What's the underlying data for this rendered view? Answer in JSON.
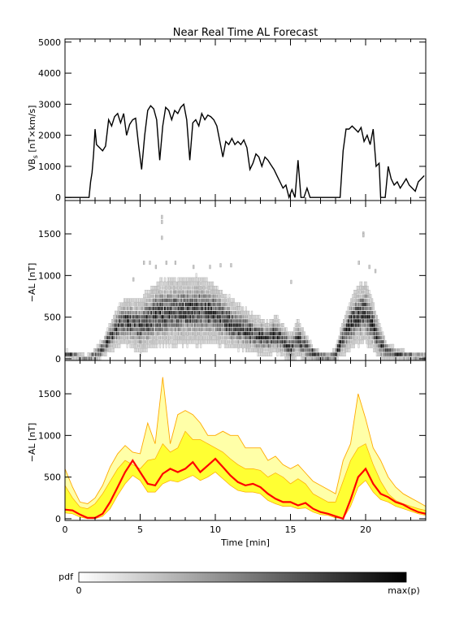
{
  "title": "Near Real Time AL Forecast",
  "colors": {
    "line_black": "#000000",
    "band_outer": "#ffa800",
    "band_fill": "#ffff33",
    "band_light": "#ffffa8",
    "median_line": "#ff0000"
  },
  "chart_data": [
    {
      "type": "line",
      "panel": "top",
      "title": "Near Real Time AL Forecast",
      "ylabel": "VB",
      "ylabel_sub": "s",
      "ylabel_rest": " [nT×km/s]",
      "xlim": [
        0,
        24
      ],
      "ylim": [
        -100,
        5100
      ],
      "yticks": [
        0,
        1000,
        2000,
        3000,
        4000,
        5000
      ],
      "series": [
        {
          "x": [
            0,
            1.2,
            1.4,
            1.6,
            1.7,
            1.8,
            1.9,
            2.0,
            2.1,
            2.3,
            2.5,
            2.7,
            2.9,
            3.1,
            3.3,
            3.5,
            3.7,
            3.9,
            4.1,
            4.3,
            4.5,
            4.7,
            4.9,
            5.1,
            5.3,
            5.5,
            5.7,
            5.9,
            6.1,
            6.3,
            6.5,
            6.7,
            6.9,
            7.1,
            7.3,
            7.5,
            7.7,
            7.9,
            8.1,
            8.3,
            8.5,
            8.7,
            8.9,
            9.1,
            9.3,
            9.5,
            9.7,
            9.9,
            10.1,
            10.3,
            10.5,
            10.7,
            10.9,
            11.1,
            11.3,
            11.5,
            11.7,
            11.9,
            12.1,
            12.3,
            12.5,
            12.7,
            12.9,
            13.1,
            13.3,
            13.5,
            13.7,
            13.9,
            14.1,
            14.3,
            14.5,
            14.7,
            14.9,
            15.1,
            15.3,
            15.5,
            15.7,
            15.9,
            16.1,
            16.3,
            16.5,
            16.7,
            17.0,
            17.5,
            18.0,
            18.3,
            18.5,
            18.7,
            18.9,
            19.1,
            19.3,
            19.5,
            19.7,
            19.9,
            20.1,
            20.3,
            20.5,
            20.7,
            20.9,
            21.0,
            21.1,
            21.3,
            21.5,
            21.7,
            21.9,
            22.1,
            22.3,
            22.5,
            22.7,
            22.9,
            23.1,
            23.3,
            23.5,
            23.7,
            23.9
          ],
          "values": [
            0,
            0,
            0,
            0,
            500,
            800,
            1400,
            2200,
            1700,
            1600,
            1500,
            1650,
            2500,
            2300,
            2600,
            2700,
            2400,
            2700,
            2000,
            2350,
            2500,
            2550,
            1650,
            900,
            2000,
            2800,
            2950,
            2850,
            2500,
            1200,
            2300,
            2900,
            2800,
            2500,
            2800,
            2700,
            2900,
            3000,
            2500,
            1200,
            2400,
            2500,
            2300,
            2700,
            2500,
            2650,
            2600,
            2500,
            2300,
            1800,
            1300,
            1800,
            1700,
            1900,
            1700,
            1800,
            1700,
            1850,
            1600,
            900,
            1100,
            1400,
            1300,
            1000,
            1300,
            1200,
            1050,
            900,
            700,
            500,
            300,
            400,
            0,
            250,
            0,
            1200,
            0,
            0,
            300,
            0,
            0,
            0,
            0,
            0,
            0,
            0,
            1500,
            2200,
            2200,
            2300,
            2200,
            2100,
            2250,
            1800,
            2000,
            1700,
            2200,
            1000,
            1100,
            0,
            0,
            0,
            1000,
            600,
            400,
            500,
            300,
            450,
            600,
            400,
            300,
            200,
            500,
            600,
            700
          ]
        }
      ]
    },
    {
      "type": "heatmap",
      "panel": "middle",
      "ylabel": "−AL [nT]",
      "xlim": [
        0,
        24
      ],
      "ylim": [
        -20,
        1900
      ],
      "yticks": [
        0,
        500,
        1000,
        1500
      ],
      "ridge_x": [
        0,
        0.5,
        1,
        1.5,
        2,
        2.5,
        3,
        3.5,
        4,
        4.5,
        5,
        5.5,
        6,
        6.5,
        7,
        7.5,
        8,
        8.5,
        9,
        9.5,
        10,
        10.5,
        11,
        11.5,
        12,
        12.5,
        13,
        13.5,
        14,
        14.5,
        15,
        15.5,
        16,
        16.5,
        17,
        17.5,
        18,
        18.5,
        19,
        19.5,
        20,
        20.5,
        21,
        21.5,
        22,
        22.5,
        23,
        23.5,
        24
      ],
      "ridge_y": [
        50,
        40,
        20,
        10,
        40,
        120,
        250,
        380,
        450,
        420,
        380,
        460,
        520,
        540,
        560,
        560,
        570,
        580,
        580,
        560,
        540,
        480,
        420,
        380,
        340,
        300,
        260,
        240,
        300,
        220,
        120,
        240,
        140,
        60,
        30,
        20,
        40,
        250,
        420,
        520,
        560,
        400,
        180,
        80,
        60,
        40,
        30,
        25,
        20
      ],
      "spread_y": [
        40,
        40,
        30,
        30,
        60,
        90,
        140,
        180,
        220,
        240,
        260,
        280,
        300,
        320,
        320,
        320,
        320,
        320,
        320,
        300,
        280,
        260,
        240,
        220,
        200,
        180,
        180,
        160,
        180,
        160,
        140,
        180,
        140,
        80,
        50,
        40,
        60,
        180,
        240,
        280,
        300,
        240,
        160,
        80,
        60,
        50,
        40,
        40,
        40
      ],
      "outliers": [
        [
          6.4,
          1700
        ],
        [
          6.4,
          1640
        ],
        [
          6.4,
          1450
        ],
        [
          19.8,
          1500
        ],
        [
          19.8,
          1480
        ],
        [
          5.2,
          1150
        ],
        [
          5.6,
          1150
        ],
        [
          6.0,
          1100
        ],
        [
          6.7,
          1150
        ],
        [
          7.3,
          1150
        ],
        [
          8.5,
          1100
        ],
        [
          9.6,
          1100
        ],
        [
          10.3,
          1120
        ],
        [
          11.0,
          1120
        ],
        [
          19.5,
          1150
        ],
        [
          20.2,
          1100
        ],
        [
          20.6,
          1050
        ],
        [
          4.5,
          950
        ],
        [
          15.0,
          920
        ]
      ]
    },
    {
      "type": "area",
      "panel": "bottom",
      "xlabel": "Time [min]",
      "ylabel": "−AL [nT]",
      "xlim": [
        0,
        24
      ],
      "ylim": [
        -20,
        1900
      ],
      "xticks": [
        0,
        5,
        10,
        15,
        20
      ],
      "yticks": [
        0,
        500,
        1000,
        1500
      ],
      "x": [
        0,
        0.5,
        1,
        1.5,
        2,
        2.5,
        3,
        3.5,
        4,
        4.5,
        5,
        5.5,
        6,
        6.5,
        7,
        7.5,
        8,
        8.5,
        9,
        9.5,
        10,
        10.5,
        11,
        11.5,
        12,
        12.5,
        13,
        13.5,
        14,
        14.5,
        15,
        15.5,
        16,
        16.5,
        17,
        17.5,
        18,
        18.5,
        19,
        19.5,
        20,
        20.5,
        21,
        21.5,
        22,
        22.5,
        23,
        23.5,
        24
      ],
      "series": [
        {
          "name": "outer_upper",
          "values": [
            600,
            380,
            200,
            180,
            250,
            400,
            620,
            780,
            880,
            800,
            780,
            1150,
            900,
            1700,
            900,
            1250,
            1300,
            1250,
            1150,
            1000,
            1000,
            1050,
            1000,
            1000,
            850,
            850,
            850,
            700,
            750,
            650,
            600,
            650,
            550,
            450,
            400,
            350,
            300,
            700,
            900,
            1500,
            1200,
            850,
            700,
            500,
            380,
            300,
            250,
            200,
            150
          ]
        },
        {
          "name": "band_upper",
          "values": [
            400,
            250,
            140,
            120,
            180,
            300,
            450,
            600,
            700,
            650,
            600,
            700,
            720,
            900,
            800,
            850,
            1050,
            950,
            950,
            900,
            850,
            800,
            720,
            650,
            600,
            600,
            580,
            500,
            550,
            500,
            420,
            480,
            420,
            300,
            250,
            200,
            200,
            450,
            700,
            850,
            900,
            650,
            450,
            300,
            220,
            180,
            150,
            120,
            100
          ]
        },
        {
          "name": "median",
          "values": [
            110,
            100,
            50,
            10,
            10,
            60,
            200,
            380,
            560,
            700,
            560,
            420,
            400,
            540,
            600,
            560,
            600,
            680,
            560,
            640,
            720,
            620,
            520,
            440,
            400,
            420,
            380,
            300,
            240,
            200,
            200,
            160,
            190,
            120,
            80,
            60,
            30,
            0,
            230,
            500,
            600,
            420,
            300,
            260,
            200,
            170,
            120,
            80,
            60
          ]
        },
        {
          "name": "band_lower",
          "values": [
            70,
            60,
            20,
            0,
            0,
            30,
            120,
            280,
            420,
            520,
            460,
            320,
            320,
            420,
            460,
            440,
            480,
            520,
            460,
            500,
            560,
            480,
            400,
            340,
            320,
            320,
            300,
            220,
            180,
            150,
            150,
            120,
            130,
            80,
            50,
            40,
            10,
            0,
            150,
            380,
            460,
            320,
            230,
            200,
            150,
            120,
            90,
            60,
            40
          ]
        }
      ]
    }
  ],
  "axes": {
    "xlabel": "Time [min]",
    "xtick_labels": [
      "0",
      "5",
      "10",
      "15",
      "20"
    ],
    "top_ytick_labels": [
      "0",
      "1000",
      "2000",
      "3000",
      "4000",
      "5000"
    ],
    "al_ytick_labels": [
      "0",
      "500",
      "1000",
      "1500"
    ]
  },
  "colorbar": {
    "label": "pdf",
    "min_label": "0",
    "max_label": "max(p)"
  }
}
